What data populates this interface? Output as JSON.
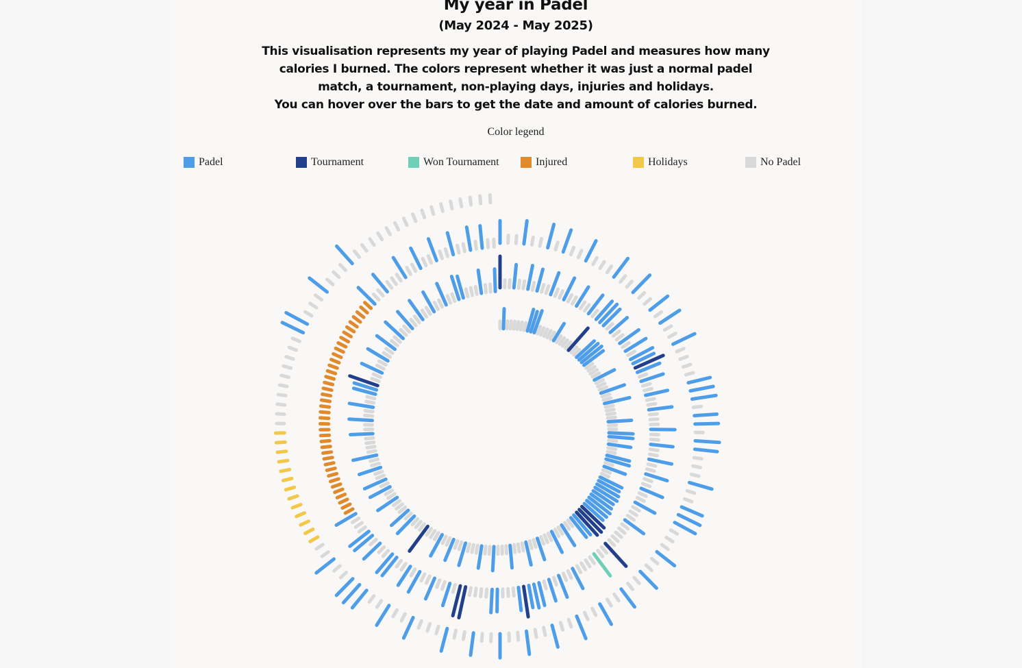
{
  "header": {
    "title": "My year in Padel",
    "subtitle": "(May 2024 - May 2025)",
    "description": [
      "This visualisation represents my year of playing Padel and measures how many",
      "calories I burned. The colors represent whether it was just a normal padel",
      "match, a tournament, non-playing days, injuries and holidays.",
      "You can hover over the bars to get the date and amount of calories burned."
    ]
  },
  "legend": {
    "title": "Color legend",
    "items": [
      {
        "key": "padel",
        "label": "Padel",
        "color": "#4e9de8"
      },
      {
        "key": "tournament",
        "label": "Tournament",
        "color": "#213f8a"
      },
      {
        "key": "won",
        "label": "Won Tournament",
        "color": "#6fcfb8"
      },
      {
        "key": "injured",
        "label": "Injured",
        "color": "#e08a2c"
      },
      {
        "key": "holidays",
        "label": "Holidays",
        "color": "#f2c84b"
      },
      {
        "key": "nopadel",
        "label": "No Padel",
        "color": "#d9d9d9"
      }
    ]
  },
  "chart_data": {
    "type": "radial-spiral-bar",
    "title": "My year in Padel",
    "period": [
      "May 2024",
      "May 2025"
    ],
    "measure": "calories burned",
    "turns": 3,
    "series": [
      {
        "turn": 1,
        "days": [
          "N",
          "P",
          "N",
          "N",
          "N",
          "N",
          "N",
          "N",
          "P",
          "P",
          "P",
          "N",
          "N",
          "N",
          "N",
          "N",
          "P",
          "N",
          "N",
          "N",
          "N",
          "T",
          "N",
          "N",
          "P",
          "P",
          "P",
          "P",
          "N",
          "N",
          "N",
          "N",
          "P",
          "N",
          "N",
          "N",
          "P",
          "N",
          "N",
          "P",
          "N",
          "N",
          "N",
          "N",
          "P",
          "N",
          "N",
          "P",
          "P",
          "N",
          "P",
          "N",
          "N",
          "P",
          "P",
          "N",
          "P",
          "N",
          "N",
          "P",
          "P",
          "P",
          "P",
          "P",
          "P",
          "P",
          "P",
          "P",
          "T",
          "T",
          "T",
          "P",
          "P",
          "N",
          "N",
          "P",
          "N",
          "N",
          "P",
          "N",
          "N",
          "N",
          "P",
          "N",
          "N",
          "P",
          "N",
          "N",
          "N",
          "P",
          "N",
          "N",
          "N",
          "P",
          "N",
          "N",
          "P",
          "N",
          "N",
          "N",
          "P",
          "N",
          "N",
          "P",
          "N",
          "N",
          "P",
          "N",
          "N",
          "N",
          "T",
          "N",
          "N",
          "N",
          "P",
          "N",
          "P",
          "N",
          "N",
          "N",
          "P",
          "N",
          "N",
          "P",
          "N",
          "P",
          "N",
          "N",
          "P",
          "N",
          "N",
          "P",
          "N",
          "N",
          "N",
          "N",
          "P",
          "N",
          "N",
          "P",
          "N",
          "N",
          "P",
          "N",
          "N",
          "P",
          "P",
          "T",
          "N",
          "N",
          "P",
          "N",
          "N",
          "P",
          "N",
          "N",
          "P",
          "N",
          "N",
          "P",
          "N",
          "N",
          "P",
          "N",
          "N",
          "P",
          "N",
          "N",
          "P",
          "N",
          "N",
          "P",
          "N",
          "N",
          "P",
          "P",
          "N",
          "N",
          "N",
          "P",
          "N",
          "N",
          "P"
        ],
        "calories": [
          120,
          420,
          120,
          120,
          120,
          120,
          120,
          120,
          480,
          450,
          500,
          120,
          120,
          120,
          120,
          120,
          420,
          120,
          120,
          120,
          120,
          650,
          120,
          120,
          520,
          540,
          560,
          520,
          120,
          120,
          120,
          120,
          480,
          120,
          120,
          120,
          540,
          120,
          120,
          560,
          120,
          120,
          120,
          120,
          500,
          120,
          120,
          520,
          520,
          120,
          480,
          120,
          120,
          500,
          520,
          120,
          480,
          120,
          120,
          520,
          500,
          540,
          560,
          520,
          540,
          580,
          560,
          540,
          680,
          700,
          680,
          560,
          540,
          120,
          120,
          520,
          120,
          120,
          500,
          120,
          120,
          120,
          480,
          120,
          120,
          500,
          120,
          120,
          120,
          480,
          120,
          120,
          120,
          520,
          120,
          120,
          480,
          120,
          120,
          120,
          500,
          120,
          120,
          480,
          120,
          120,
          520,
          120,
          120,
          120,
          680,
          120,
          120,
          120,
          520,
          120,
          480,
          120,
          120,
          120,
          500,
          120,
          120,
          480,
          120,
          500,
          120,
          120,
          480,
          120,
          120,
          520,
          120,
          120,
          120,
          120,
          480,
          120,
          120,
          500,
          120,
          120,
          520,
          120,
          120,
          480,
          500,
          650,
          120,
          120,
          480,
          120,
          120,
          500,
          120,
          120,
          480,
          120,
          120,
          520,
          120,
          120,
          480,
          120,
          120,
          500,
          120,
          120,
          480,
          120,
          120,
          500,
          120,
          120,
          520,
          480,
          120,
          120,
          120,
          500,
          120,
          120,
          480
        ]
      },
      {
        "turn": 2,
        "days": [
          "T",
          "N",
          "N",
          "P",
          "N",
          "N",
          "P",
          "N",
          "P",
          "N",
          "N",
          "P",
          "N",
          "N",
          "P",
          "N",
          "N",
          "P",
          "N",
          "N",
          "P",
          "N",
          "P",
          "P",
          "P",
          "N",
          "P",
          "N",
          "N",
          "P",
          "N",
          "P",
          "N",
          "P",
          "P",
          "T",
          "P",
          "N",
          "P",
          "N",
          "N",
          "P",
          "N",
          "N",
          "P",
          "N",
          "N",
          "N",
          "P",
          "N",
          "N",
          "P",
          "N",
          "N",
          "P",
          "N",
          "N",
          "P",
          "N",
          "N",
          "P",
          "N",
          "N",
          "P",
          "N",
          "N",
          "N",
          "P",
          "N",
          "N",
          "N",
          "N",
          "N",
          "T",
          "N",
          "N",
          "W",
          "N",
          "N",
          "N",
          "N",
          "P",
          "N",
          "N",
          "P",
          "N",
          "P",
          "N",
          "P",
          "P",
          "P",
          "T",
          "P",
          "N",
          "N",
          "N",
          "P",
          "P",
          "N",
          "N",
          "N",
          "N",
          "T",
          "T",
          "N",
          "P",
          "N",
          "N",
          "P",
          "N",
          "N",
          "P",
          "N",
          "P",
          "N",
          "N",
          "P",
          "P",
          "N",
          "N",
          "P",
          "N",
          "P",
          "P",
          "N",
          "N",
          "N",
          "P",
          "I",
          "I",
          "I",
          "I",
          "I",
          "I",
          "I",
          "I",
          "I",
          "I",
          "I",
          "I",
          "I",
          "I",
          "I",
          "I",
          "I",
          "I",
          "I",
          "I",
          "I",
          "I",
          "I",
          "I",
          "I",
          "I",
          "I",
          "I",
          "I",
          "I",
          "I",
          "I",
          "I",
          "I",
          "I",
          "I",
          "I",
          "I",
          "I",
          "P",
          "N",
          "N",
          "P",
          "N",
          "N",
          "N",
          "P",
          "N",
          "N",
          "P",
          "N",
          "N",
          "P",
          "N",
          "N",
          "P",
          "N",
          "N",
          "P",
          "N",
          "P",
          "N",
          "N"
        ],
        "calories": [
          700,
          120,
          120,
          500,
          120,
          120,
          520,
          120,
          480,
          120,
          120,
          500,
          120,
          120,
          520,
          120,
          120,
          480,
          120,
          120,
          500,
          120,
          520,
          540,
          500,
          120,
          480,
          120,
          120,
          500,
          120,
          520,
          120,
          540,
          500,
          680,
          520,
          120,
          500,
          120,
          120,
          480,
          120,
          120,
          500,
          120,
          120,
          120,
          520,
          120,
          120,
          480,
          120,
          120,
          500,
          120,
          120,
          480,
          120,
          120,
          500,
          120,
          120,
          480,
          120,
          120,
          120,
          500,
          120,
          120,
          120,
          120,
          120,
          680,
          120,
          120,
          600,
          120,
          120,
          120,
          120,
          480,
          120,
          120,
          500,
          120,
          480,
          120,
          500,
          520,
          480,
          680,
          500,
          120,
          120,
          120,
          480,
          500,
          120,
          120,
          120,
          120,
          700,
          680,
          120,
          500,
          120,
          120,
          480,
          120,
          120,
          500,
          120,
          480,
          120,
          120,
          500,
          520,
          120,
          120,
          480,
          120,
          500,
          520,
          120,
          120,
          120,
          480,
          140,
          140,
          140,
          140,
          140,
          140,
          140,
          140,
          140,
          140,
          140,
          140,
          140,
          140,
          140,
          140,
          140,
          140,
          140,
          140,
          140,
          140,
          140,
          140,
          140,
          140,
          140,
          140,
          140,
          140,
          140,
          140,
          140,
          140,
          140,
          140,
          140,
          140,
          140,
          500,
          120,
          120,
          480,
          120,
          120,
          120,
          500,
          120,
          120,
          480,
          120,
          120,
          500,
          120,
          120,
          480,
          120,
          120,
          500,
          120,
          480,
          120,
          120
        ]
      },
      {
        "turn": 3,
        "days": [
          "P",
          "N",
          "N",
          "P",
          "N",
          "N",
          "P",
          "N",
          "P",
          "N",
          "N",
          "P",
          "N",
          "N",
          "N",
          "P",
          "N",
          "N",
          "P",
          "N",
          "N",
          "P",
          "N",
          "P",
          "N",
          "N",
          "P",
          "N",
          "N",
          "N",
          "N",
          "P",
          "P",
          "P",
          "N",
          "P",
          "P",
          "N",
          "P",
          "P",
          "N",
          "N",
          "N",
          "P",
          "N",
          "N",
          "P",
          "P",
          "P",
          "N",
          "N",
          "N",
          "P",
          "N",
          "N",
          "P",
          "N",
          "N",
          "P",
          "N",
          "N",
          "P",
          "N",
          "N",
          "P",
          "N",
          "N",
          "P",
          "N",
          "N",
          "P",
          "N",
          "N",
          "P",
          "N",
          "N",
          "P",
          "N",
          "N",
          "P",
          "N",
          "N",
          "N",
          "P",
          "N",
          "N",
          "P",
          "N",
          "N",
          "P",
          "P",
          "P",
          "N",
          "N",
          "P",
          "N",
          "N",
          "H",
          "H",
          "H",
          "H",
          "H",
          "H",
          "H",
          "H",
          "H",
          "H",
          "H",
          "H",
          "H",
          "N",
          "N",
          "N",
          "N",
          "N",
          "N",
          "N",
          "N",
          "N",
          "N",
          "P",
          "P",
          "N",
          "N",
          "N",
          "P",
          "N",
          "N",
          "N",
          "P",
          "N",
          "N",
          "N",
          "N",
          "N",
          "N",
          "N",
          "N",
          "N",
          "N",
          "N",
          "N",
          "N",
          "N",
          "N",
          "N"
        ],
        "calories": [
          480,
          120,
          120,
          500,
          120,
          120,
          520,
          120,
          500,
          120,
          120,
          480,
          120,
          120,
          120,
          500,
          120,
          120,
          520,
          120,
          120,
          480,
          120,
          500,
          120,
          120,
          520,
          120,
          120,
          120,
          120,
          480,
          500,
          520,
          120,
          480,
          500,
          120,
          520,
          480,
          120,
          120,
          120,
          500,
          120,
          120,
          480,
          520,
          500,
          120,
          120,
          120,
          480,
          120,
          120,
          500,
          120,
          120,
          480,
          120,
          120,
          500,
          120,
          120,
          520,
          120,
          120,
          480,
          120,
          120,
          500,
          120,
          120,
          520,
          120,
          120,
          480,
          120,
          120,
          500,
          120,
          120,
          120,
          480,
          120,
          120,
          500,
          120,
          120,
          480,
          520,
          500,
          120,
          120,
          480,
          120,
          120,
          150,
          150,
          150,
          150,
          150,
          150,
          150,
          150,
          150,
          150,
          150,
          150,
          150,
          120,
          120,
          120,
          120,
          120,
          120,
          120,
          120,
          120,
          120,
          500,
          520,
          120,
          120,
          120,
          480,
          120,
          120,
          120,
          500,
          120,
          120,
          120,
          120,
          120,
          120,
          120,
          120,
          120,
          120,
          120,
          120,
          120,
          120,
          120,
          120
        ]
      }
    ]
  }
}
